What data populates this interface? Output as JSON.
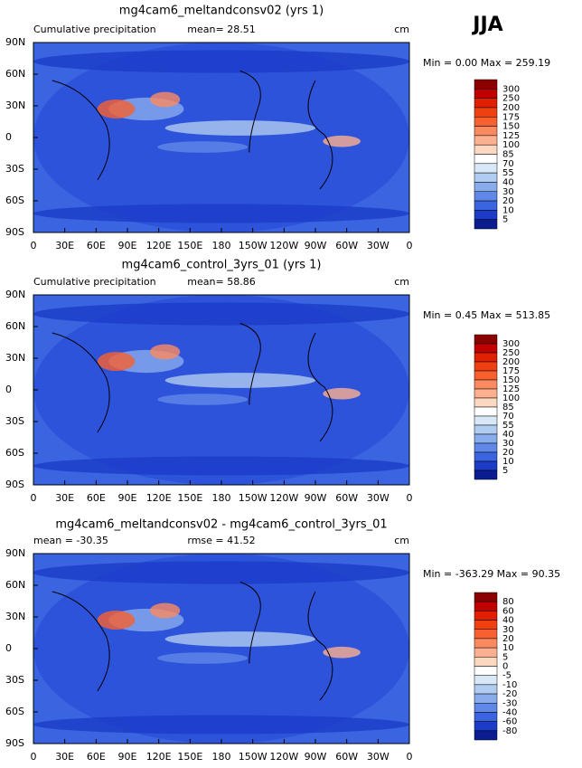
{
  "season": "JJA",
  "lat_labels": [
    "90N",
    "60N",
    "30N",
    "0",
    "30S",
    "60S",
    "90S"
  ],
  "lon_labels": [
    "0",
    "30E",
    "60E",
    "90E",
    "120E",
    "150E",
    "180",
    "150W",
    "120W",
    "90W",
    "60W",
    "30W",
    "0"
  ],
  "panels": [
    {
      "title": "mg4cam6_meltandconsv02 (yrs 1)",
      "left_label": "Cumulative precipitation",
      "center_label": "mean=  28.51",
      "right_label": "cm",
      "stats": "Min =    0.00 Max = 259.19",
      "colorbar": {
        "labels": [
          "300",
          "250",
          "200",
          "175",
          "150",
          "125",
          "100",
          "85",
          "70",
          "55",
          "40",
          "30",
          "20",
          "10",
          "5"
        ],
        "colors": [
          "#8b0000",
          "#c00000",
          "#e02000",
          "#f04010",
          "#f86030",
          "#fb8a60",
          "#fdb090",
          "#fdd8c0",
          "#ffffff",
          "#d8e8f8",
          "#b0ccf0",
          "#88acec",
          "#6088e8",
          "#3a64e0",
          "#1c3cc8",
          "#0a1c90"
        ]
      }
    },
    {
      "title": "mg4cam6_control_3yrs_01 (yrs 1)",
      "left_label": "Cumulative precipitation",
      "center_label": "mean=  58.86",
      "right_label": "cm",
      "stats": "Min =    0.45 Max = 513.85",
      "colorbar": {
        "labels": [
          "300",
          "250",
          "200",
          "175",
          "150",
          "125",
          "100",
          "85",
          "70",
          "55",
          "40",
          "30",
          "20",
          "10",
          "5"
        ],
        "colors": [
          "#8b0000",
          "#c00000",
          "#e02000",
          "#f04010",
          "#f86030",
          "#fb8a60",
          "#fdb090",
          "#fdd8c0",
          "#ffffff",
          "#d8e8f8",
          "#b0ccf0",
          "#88acec",
          "#6088e8",
          "#3a64e0",
          "#1c3cc8",
          "#0a1c90"
        ]
      }
    },
    {
      "title": "mg4cam6_meltandconsv02 - mg4cam6_control_3yrs_01",
      "left_label": "mean = -30.35",
      "center_label": "rmse =  41.52",
      "right_label": "cm",
      "stats": "Min = -363.29 Max =  90.35",
      "colorbar": {
        "labels": [
          "80",
          "60",
          "40",
          "30",
          "20",
          "10",
          "5",
          "0",
          "-5",
          "-10",
          "-20",
          "-30",
          "-40",
          "-60",
          "-80"
        ],
        "colors": [
          "#8b0000",
          "#c00000",
          "#e02000",
          "#f04010",
          "#f86030",
          "#fb8a60",
          "#fdb090",
          "#fdd8c0",
          "#ffffff",
          "#d8e8f8",
          "#b0ccf0",
          "#88acec",
          "#6088e8",
          "#3a64e0",
          "#1c3cc8",
          "#0a1c90"
        ]
      }
    }
  ]
}
